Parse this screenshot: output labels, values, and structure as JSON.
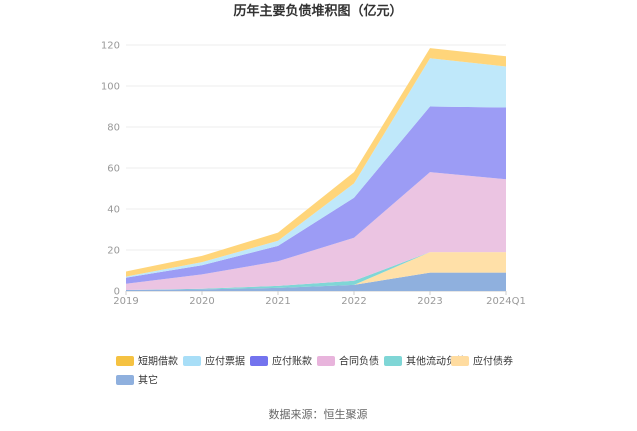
{
  "chart_data": {
    "type": "area",
    "stacked": true,
    "title": "历年主要负债堆积图（亿元）",
    "x": [
      "2019",
      "2020",
      "2021",
      "2022",
      "2023",
      "2024Q1"
    ],
    "ylim": [
      0,
      120
    ],
    "yticks": [
      0,
      20,
      40,
      60,
      80,
      100,
      120
    ],
    "grid": true,
    "legend_position": "bottom",
    "source": "数据来源：恒生聚源",
    "series": [
      {
        "name": "其它",
        "color": "#8fb0de",
        "values": [
          0.5,
          0.8,
          1.5,
          3.0,
          9.0,
          9.0
        ]
      },
      {
        "name": "应付债券",
        "color": "#ffe0a8",
        "values": [
          0,
          0,
          0,
          0,
          10.0,
          10.0
        ]
      },
      {
        "name": "其他流动负债",
        "color": "#7fd6d6",
        "values": [
          0,
          0.3,
          1.0,
          2.0,
          0,
          0
        ]
      },
      {
        "name": "合同负债",
        "color": "#ebc4e2",
        "values": [
          3.0,
          7.0,
          12.0,
          21.0,
          39.0,
          35.5
        ]
      },
      {
        "name": "应付账款",
        "color": "#9c9cf5",
        "values": [
          3.0,
          4.5,
          7.5,
          19.5,
          32.0,
          35.0
        ]
      },
      {
        "name": "应付票据",
        "color": "#bfe8fa",
        "values": [
          0.5,
          1.5,
          2.5,
          7.0,
          23.5,
          20.0
        ]
      },
      {
        "name": "短期借款",
        "color": "#ffd57a",
        "values": [
          2.5,
          3.0,
          4.0,
          5.5,
          5.0,
          5.0
        ]
      }
    ],
    "legend_order": [
      "短期借款",
      "应付票据",
      "应付账款",
      "合同负债",
      "其他流动负债",
      "应付债券",
      "其它"
    ],
    "legend_swatch_colors": {
      "短期借款": "#f5c242",
      "应付票据": "#a8def7",
      "应付账款": "#7373ee",
      "合同负债": "#e8b4dc",
      "其他流动负债": "#7fd6d6",
      "应付债券": "#ffdca0",
      "其它": "#8fb0de"
    }
  }
}
